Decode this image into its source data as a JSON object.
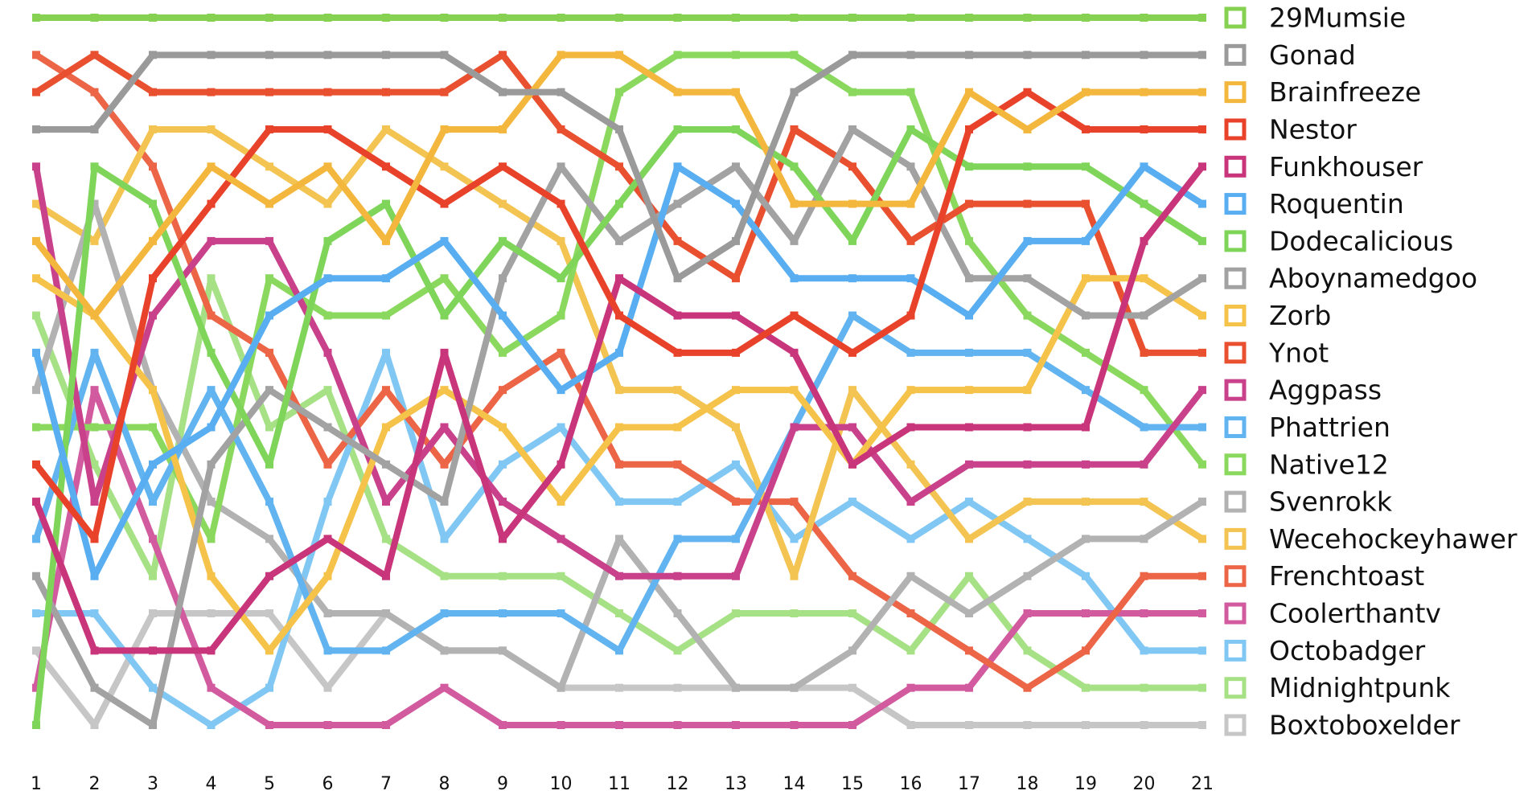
{
  "chart_data": {
    "type": "bump",
    "categories": [
      "1",
      "2",
      "3",
      "4",
      "5",
      "6",
      "7",
      "8",
      "9",
      "10",
      "11",
      "12",
      "13",
      "14",
      "15",
      "16",
      "17",
      "18",
      "19",
      "20",
      "21"
    ],
    "ylim": [
      1,
      20
    ],
    "series": [
      {
        "name": "29Mumsie",
        "color": "#86d152",
        "values": [
          1,
          1,
          1,
          1,
          1,
          1,
          1,
          1,
          1,
          1,
          1,
          1,
          1,
          1,
          1,
          1,
          1,
          1,
          1,
          1,
          1
        ]
      },
      {
        "name": "Gonad",
        "color": "#9a9a9a",
        "values": [
          4,
          4,
          2,
          2,
          2,
          2,
          2,
          2,
          3,
          3,
          4,
          8,
          7,
          3,
          2,
          2,
          2,
          2,
          2,
          2,
          2
        ]
      },
      {
        "name": "Brainfreeze",
        "color": "#f4b73e",
        "values": [
          7,
          9,
          7,
          5,
          6,
          5,
          7,
          4,
          4,
          2,
          2,
          3,
          3,
          6,
          6,
          6,
          3,
          4,
          3,
          3,
          3
        ]
      },
      {
        "name": "Nestor",
        "color": "#e8432a",
        "values": [
          13,
          15,
          8,
          6,
          4,
          4,
          5,
          6,
          5,
          6,
          9,
          10,
          10,
          9,
          10,
          9,
          4,
          3,
          4,
          4,
          4
        ]
      },
      {
        "name": "Funkhouser",
        "color": "#c9357a",
        "values": [
          14,
          18,
          18,
          18,
          16,
          15,
          16,
          10,
          15,
          13,
          8,
          9,
          9,
          10,
          13,
          12,
          12,
          12,
          12,
          7,
          5
        ]
      },
      {
        "name": "Roquentin",
        "color": "#58aef0",
        "values": [
          10,
          16,
          13,
          12,
          9,
          8,
          8,
          7,
          9,
          11,
          10,
          5,
          6,
          8,
          8,
          8,
          9,
          7,
          7,
          5,
          6
        ]
      },
      {
        "name": "Dodecalicious",
        "color": "#7fd55a",
        "values": [
          20,
          5,
          6,
          10,
          13,
          7,
          6,
          9,
          7,
          8,
          6,
          4,
          4,
          5,
          7,
          4,
          5,
          5,
          5,
          6,
          7
        ]
      },
      {
        "name": "Aboynamedgoo",
        "color": "#a2a2a2",
        "values": [
          16,
          19,
          20,
          13,
          11,
          12,
          13,
          14,
          8,
          5,
          7,
          6,
          5,
          7,
          4,
          5,
          8,
          8,
          9,
          9,
          8
        ]
      },
      {
        "name": "Zorb",
        "color": "#f5c24a",
        "values": [
          8,
          9,
          11,
          16,
          18,
          16,
          12,
          11,
          12,
          14,
          12,
          12,
          11,
          11,
          13,
          11,
          11,
          11,
          8,
          8,
          9
        ]
      },
      {
        "name": "Ynot",
        "color": "#e9502f",
        "values": [
          3,
          2,
          3,
          3,
          3,
          3,
          3,
          3,
          2,
          4,
          5,
          7,
          8,
          4,
          5,
          7,
          6,
          6,
          6,
          10,
          10
        ]
      },
      {
        "name": "Aggpass",
        "color": "#c8418a",
        "values": [
          5,
          14,
          9,
          7,
          7,
          10,
          14,
          12,
          14,
          15,
          16,
          16,
          16,
          12,
          12,
          14,
          13,
          13,
          13,
          13,
          11
        ]
      },
      {
        "name": "Phattrien",
        "color": "#62b4f1",
        "values": [
          15,
          10,
          14,
          11,
          14,
          18,
          18,
          17,
          17,
          17,
          18,
          15,
          15,
          12,
          9,
          10,
          10,
          10,
          11,
          12,
          12
        ]
      },
      {
        "name": "Native12",
        "color": "#8ad95e",
        "values": [
          12,
          12,
          12,
          15,
          8,
          9,
          9,
          8,
          10,
          9,
          3,
          2,
          2,
          2,
          3,
          3,
          7,
          9,
          10,
          11,
          13
        ]
      },
      {
        "name": "Svenrokk",
        "color": "#b2b2b2",
        "values": [
          11,
          6,
          11,
          14,
          15,
          17,
          17,
          18,
          18,
          19,
          15,
          17,
          19,
          19,
          18,
          16,
          17,
          16,
          15,
          15,
          14
        ]
      },
      {
        "name": "Wecehockeyhawer",
        "color": "#f3c452",
        "values": [
          6,
          7,
          4,
          4,
          5,
          6,
          4,
          5,
          6,
          7,
          11,
          11,
          12,
          16,
          11,
          13,
          15,
          14,
          14,
          14,
          15
        ]
      },
      {
        "name": "Frenchtoast",
        "color": "#ec6546",
        "values": [
          2,
          3,
          5,
          9,
          10,
          13,
          11,
          13,
          11,
          10,
          13,
          13,
          14,
          14,
          16,
          17,
          18,
          19,
          18,
          16,
          16
        ]
      },
      {
        "name": "Coolerthantv",
        "color": "#d25a9e",
        "values": [
          19,
          11,
          15,
          19,
          20,
          20,
          20,
          19,
          20,
          20,
          20,
          20,
          20,
          20,
          20,
          19,
          19,
          17,
          17,
          17,
          17
        ]
      },
      {
        "name": "Octobadger",
        "color": "#80c7f4",
        "values": [
          17,
          17,
          19,
          20,
          19,
          14,
          10,
          15,
          13,
          12,
          14,
          14,
          13,
          15,
          14,
          15,
          14,
          15,
          16,
          18,
          18
        ]
      },
      {
        "name": "Midnightpunk",
        "color": "#a7e186",
        "values": [
          9,
          13,
          16,
          8,
          12,
          11,
          15,
          16,
          16,
          16,
          17,
          18,
          17,
          17,
          17,
          18,
          16,
          18,
          19,
          19,
          19
        ]
      },
      {
        "name": "Boxtoboxelder",
        "color": "#c6c6c6",
        "values": [
          18,
          20,
          17,
          17,
          17,
          19,
          17,
          18,
          18,
          19,
          19,
          19,
          19,
          19,
          19,
          20,
          20,
          20,
          20,
          20,
          20
        ]
      }
    ]
  }
}
